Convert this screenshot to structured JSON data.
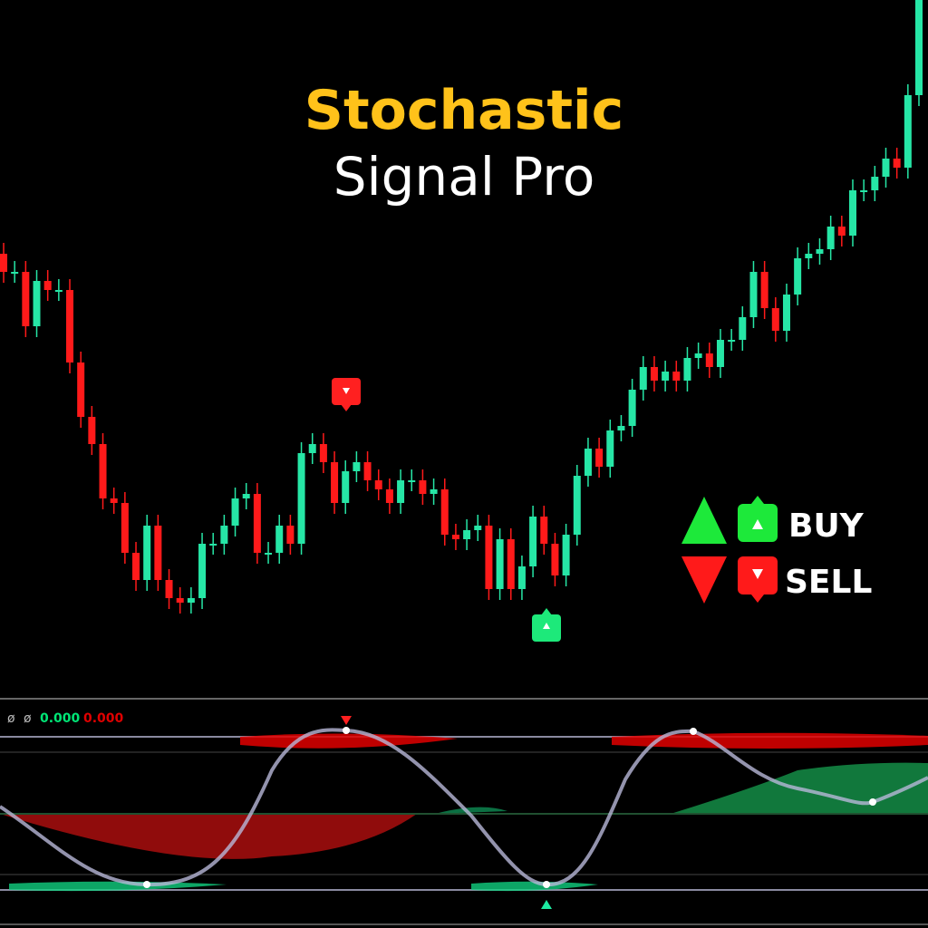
{
  "chart_data": {
    "type": "candlestick",
    "title": "Stochastic",
    "subtitle": "Signal Pro",
    "legend": {
      "buy": "BUY",
      "sell": "SELL"
    },
    "indicator": {
      "labels": [
        "ø",
        "ø"
      ],
      "values": [
        0,
        0
      ],
      "value_labels": [
        "0.000",
        "0.000"
      ],
      "colors": [
        "#00e676",
        "#e00000"
      ]
    },
    "up_color": "#26e6a6",
    "down_color": "#ff1a1a",
    "ylim": [
      0,
      720
    ],
    "open": [
      440,
      420,
      420,
      360,
      410,
      400,
      400,
      320,
      260,
      230,
      170,
      165,
      110,
      80,
      140,
      80,
      60,
      55,
      60,
      120,
      120,
      140,
      170,
      175,
      110,
      110,
      140,
      120,
      220,
      230,
      210,
      165,
      200,
      210,
      190,
      180,
      165,
      190,
      190,
      175,
      180,
      130,
      125,
      135,
      140,
      70,
      125,
      70,
      95,
      150,
      120,
      85,
      130,
      195,
      225,
      205,
      245,
      250,
      290,
      315,
      300,
      310,
      300,
      325,
      330,
      315,
      345,
      345,
      370,
      420,
      380,
      355,
      395,
      435,
      440,
      445,
      470,
      460,
      510,
      510,
      525,
      545,
      535,
      615
    ],
    "high": [
      452,
      432,
      432,
      422,
      422,
      412,
      412,
      332,
      272,
      242,
      182,
      177,
      122,
      152,
      152,
      92,
      72,
      72,
      132,
      132,
      152,
      182,
      187,
      187,
      122,
      152,
      152,
      232,
      242,
      242,
      222,
      212,
      222,
      222,
      202,
      192,
      202,
      202,
      202,
      192,
      192,
      142,
      147,
      152,
      152,
      137,
      137,
      107,
      162,
      162,
      132,
      142,
      207,
      237,
      237,
      257,
      262,
      302,
      327,
      327,
      322,
      322,
      337,
      342,
      342,
      357,
      357,
      382,
      432,
      432,
      392,
      407,
      447,
      452,
      457,
      482,
      482,
      522,
      522,
      537,
      557,
      557,
      627,
      732
    ],
    "low": [
      408,
      408,
      348,
      348,
      388,
      388,
      308,
      248,
      218,
      158,
      153,
      98,
      68,
      68,
      68,
      48,
      43,
      43,
      48,
      108,
      108,
      128,
      158,
      98,
      98,
      98,
      108,
      108,
      208,
      198,
      153,
      153,
      188,
      178,
      168,
      153,
      153,
      178,
      163,
      163,
      118,
      113,
      113,
      123,
      58,
      58,
      58,
      58,
      83,
      108,
      73,
      73,
      118,
      183,
      193,
      193,
      233,
      238,
      278,
      288,
      288,
      288,
      288,
      313,
      303,
      303,
      333,
      333,
      358,
      368,
      343,
      343,
      383,
      423,
      428,
      433,
      448,
      448,
      498,
      498,
      513,
      523,
      523,
      603
    ],
    "close": [
      420,
      420,
      360,
      410,
      400,
      400,
      320,
      260,
      230,
      170,
      165,
      110,
      80,
      140,
      80,
      60,
      55,
      60,
      120,
      120,
      140,
      170,
      175,
      110,
      110,
      140,
      120,
      220,
      230,
      210,
      165,
      200,
      210,
      190,
      180,
      165,
      190,
      190,
      175,
      180,
      130,
      125,
      135,
      140,
      70,
      125,
      70,
      95,
      150,
      120,
      85,
      130,
      195,
      225,
      205,
      245,
      250,
      290,
      315,
      300,
      310,
      300,
      325,
      330,
      315,
      345,
      345,
      370,
      420,
      380,
      355,
      395,
      435,
      440,
      445,
      470,
      460,
      510,
      510,
      525,
      545,
      535,
      615,
      720
    ]
  }
}
